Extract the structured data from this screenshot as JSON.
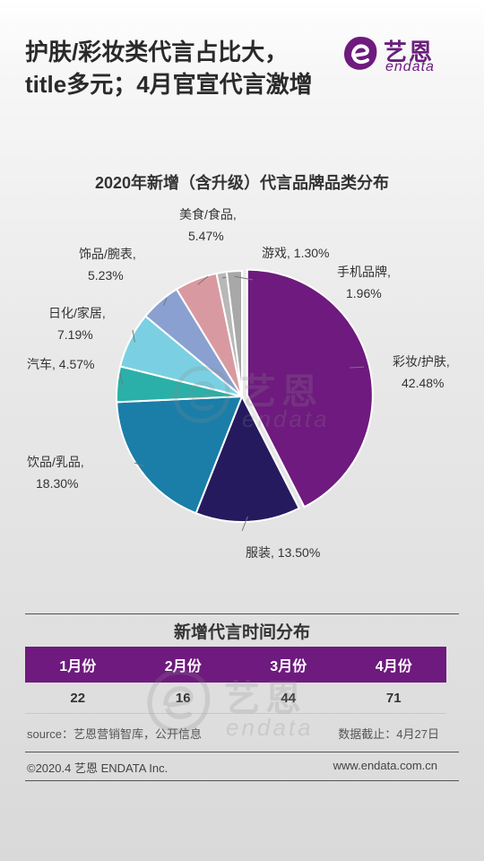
{
  "headline": {
    "line1": "护肤/彩妆类代言占比大，",
    "line2": "title多元；4月官宣代言激增"
  },
  "brand": {
    "cn": "艺恩",
    "en": "endata",
    "accent_color": "#6b1e7e"
  },
  "chart_data": {
    "type": "pie",
    "title": "2020年新增（含升级）代言品牌品类分布",
    "unit": "%",
    "start_angle_deg": 0,
    "direction": "clockwise",
    "slices": [
      {
        "name": "彩妆/护肤",
        "value": 42.48,
        "label": "42.48%",
        "color": "#6e1a7e"
      },
      {
        "name": "服装",
        "value": 13.5,
        "label": "13.50%",
        "color": "#251a5e"
      },
      {
        "name": "饮品/乳品",
        "value": 18.3,
        "label": "18.30%",
        "color": "#1a7ea8"
      },
      {
        "name": "汽车",
        "value": 4.57,
        "label": "4.57%",
        "color": "#2ab0a8"
      },
      {
        "name": "日化/家居",
        "value": 7.19,
        "label": "7.19%",
        "color": "#7ad0e2"
      },
      {
        "name": "饰品/腕表",
        "value": 5.23,
        "label": "5.23%",
        "color": "#8aa0d0"
      },
      {
        "name": "美食/食品",
        "value": 5.47,
        "label": "5.47%",
        "color": "#d89aa0"
      },
      {
        "name": "游戏",
        "value": 1.3,
        "label": "1.30%",
        "color": "#b8b8b8"
      },
      {
        "name": "手机品牌",
        "value": 1.96,
        "label": "1.96%",
        "color": "#a8a8a8"
      }
    ]
  },
  "table": {
    "title": "新增代言时间分布",
    "header_color": "#6e1a7e",
    "columns": [
      "1月份",
      "2月份",
      "3月份",
      "4月份"
    ],
    "values": [
      "22",
      "16",
      "44",
      "71"
    ]
  },
  "source": {
    "left": "source：艺恩营销智库，公开信息",
    "right": "数据截止：4月27日"
  },
  "footer": {
    "left": "©2020.4  艺恩 ENDATA Inc.",
    "right": "www.endata.com.cn"
  }
}
